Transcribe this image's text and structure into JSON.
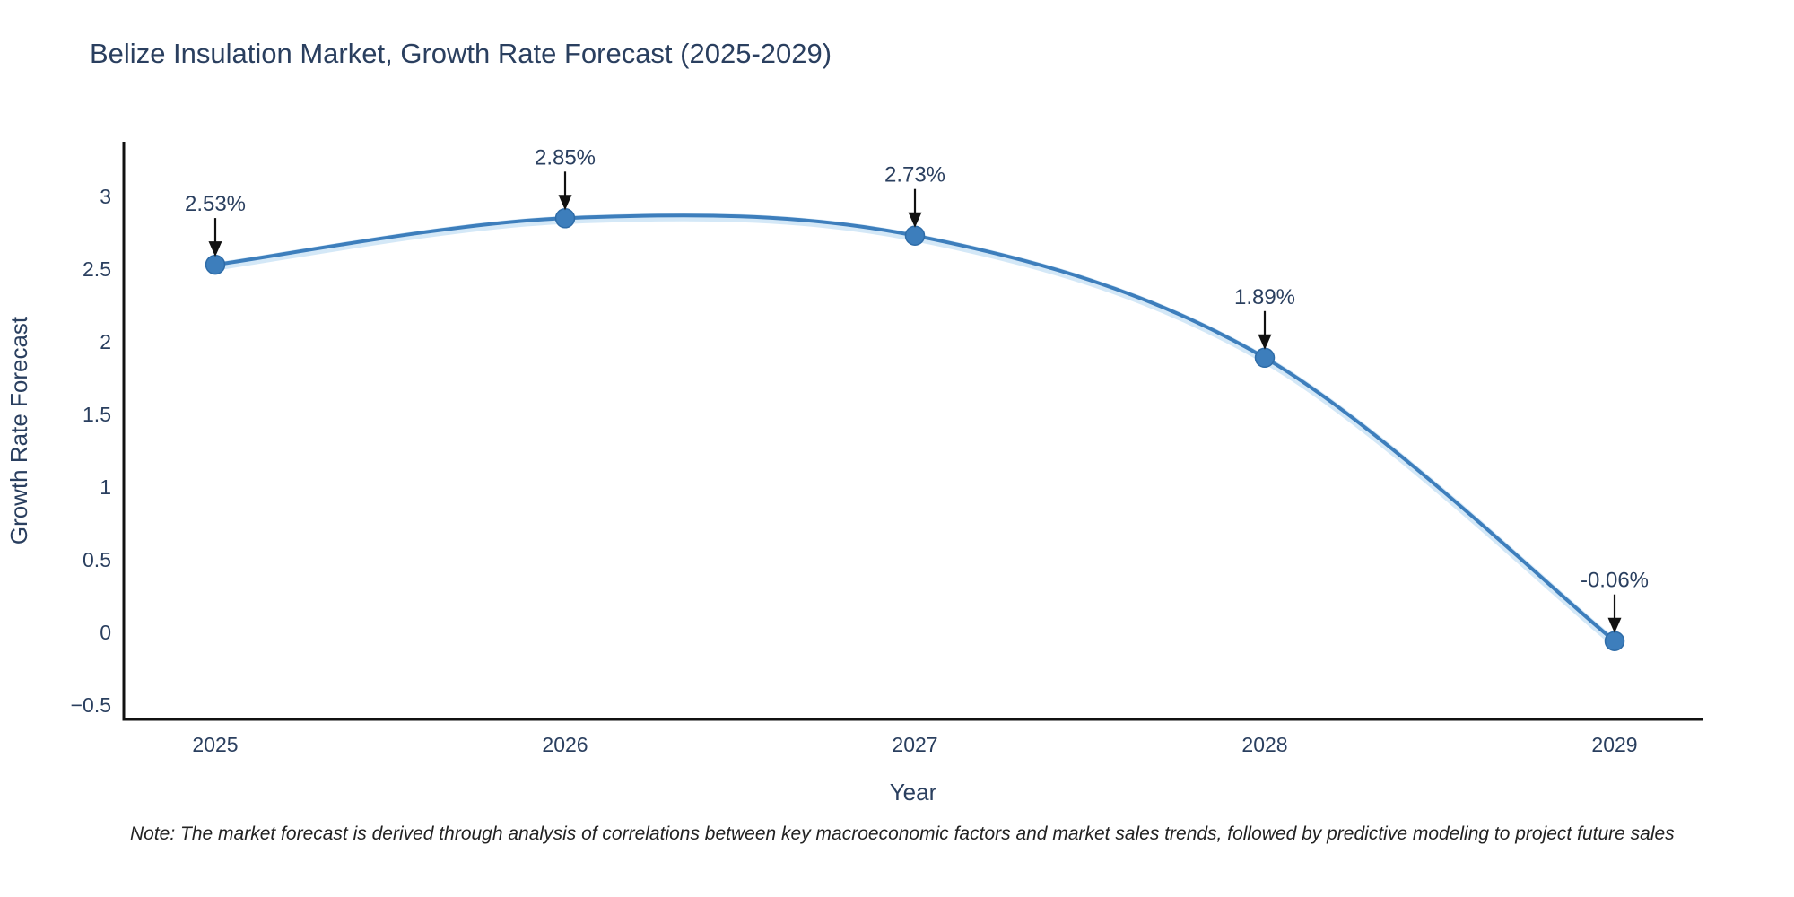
{
  "header": {
    "title": "Belize Insulation Market, Growth Rate Forecast (2025-2029)"
  },
  "footer": {
    "note": "Note: The market forecast is derived through analysis of correlations between key macroeconomic factors and market sales trends, followed by predictive modeling to project future sales"
  },
  "chart_data": {
    "type": "line",
    "line_shape": "spline",
    "title": "Belize Insulation Market, Growth Rate Forecast (2025-2029)",
    "xlabel": "Year",
    "ylabel": "Growth Rate Forecast",
    "x": [
      2025,
      2026,
      2027,
      2028,
      2029
    ],
    "series": [
      {
        "name": "Growth Rate Forecast",
        "values": [
          2.53,
          2.85,
          2.73,
          1.89,
          -0.06
        ]
      }
    ],
    "point_labels": [
      "2.53%",
      "2.85%",
      "2.73%",
      "1.89%",
      "-0.06%"
    ],
    "xtick_labels": [
      "2025",
      "2026",
      "2027",
      "2028",
      "2029"
    ],
    "ytick_values": [
      3,
      2.5,
      2,
      1.5,
      1,
      0.5,
      0,
      -0.5
    ],
    "ytick_labels": [
      "3",
      "2.5",
      "2",
      "1.5",
      "1",
      "0.5",
      "0",
      "−0.5"
    ],
    "xlim": [
      2024.74,
      2029.25
    ],
    "ylim": [
      -0.6,
      3.38
    ],
    "grid": false,
    "legend_position": "none",
    "annotations_have_arrows": true,
    "colors": {
      "line": "#3d7ebc",
      "line_halo": "#cde4f6",
      "marker": "#3d7ebc",
      "marker_edge": "#2e6ca8",
      "axis": "#111111",
      "arrow": "#111111",
      "text": "#2a3f5f",
      "title_text": "#2a3f5f",
      "note_text": "#222222",
      "background": "#ffffff"
    }
  }
}
